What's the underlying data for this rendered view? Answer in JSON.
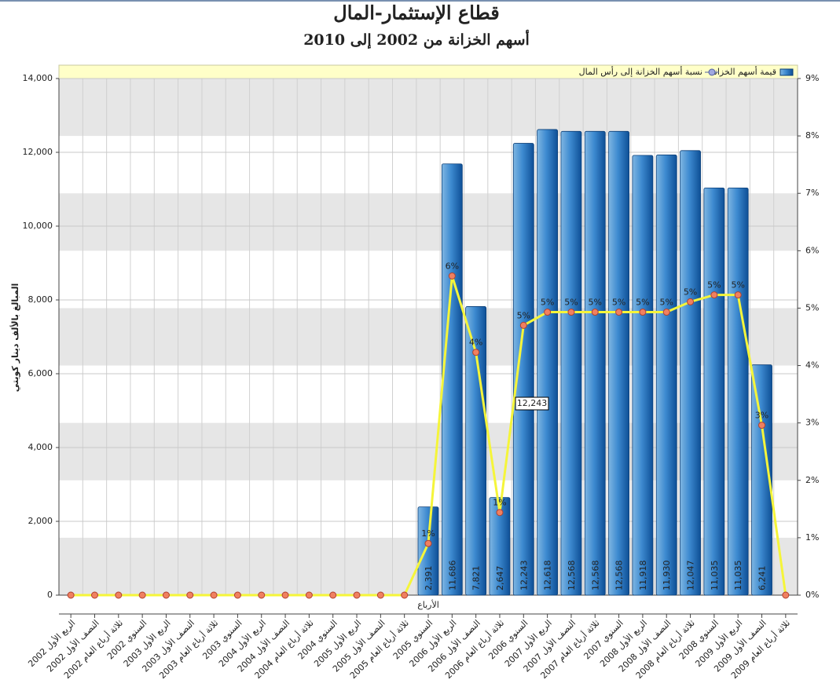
{
  "chart_data": {
    "type": "bar-line",
    "title": "قطاع الإستثمار-المال",
    "subtitle": "أسهم الخزانة من 2002 إلى 2010",
    "y_label": "المبالغ بالألف دينار كويتي",
    "x_label": "الأرباع",
    "tooltip": "12,243",
    "categories": [
      "الربع الأول 2002",
      "النصف الأول 2002",
      "ثلاثة أرباع العام 2002",
      "السنوي 2002",
      "الربع الأول 2003",
      "النصف الأول 2003",
      "ثلاثة أرباع العام 2003",
      "السنوي 2003",
      "الربع الأول 2004",
      "النصف الأول 2004",
      "ثلاثة أرباع العام 2004",
      "السنوي 2004",
      "الربع الأول 2005",
      "النصف الأول 2005",
      "ثلاثة أرباع العام 2005",
      "السنوي 2005",
      "الربع الأول 2006",
      "النصف الأول 2006",
      "ثلاثة أرباع العام 2006",
      "السنوي 2006",
      "الربع الأول 2007",
      "النصف الأول 2007",
      "ثلاثة أرباع العام 2007",
      "السنوي 2007",
      "الربع الأول 2008",
      "النصف الأول 2008",
      "ثلاثة أرباع العام 2008",
      "السنوي 2008",
      "الربع الأول 2009",
      "النصف الأول 2009",
      "ثلاثة أرباع العام 2009"
    ],
    "series": [
      {
        "name": "قيمة أسهم الخزانة",
        "type": "bar",
        "color": "#2f7fc4",
        "values": [
          0,
          0,
          0,
          0,
          0,
          0,
          0,
          0,
          0,
          0,
          0,
          0,
          0,
          0,
          0,
          2391,
          11686,
          7821,
          2647,
          12243,
          12618,
          12568,
          12568,
          12568,
          11918,
          11930,
          12047,
          11035,
          11035,
          6241,
          0
        ],
        "value_labels": [
          null,
          null,
          null,
          null,
          null,
          null,
          null,
          null,
          null,
          null,
          null,
          null,
          null,
          null,
          null,
          "2,391",
          "11,686",
          "7,821",
          "2,647",
          "12,243",
          "12,618",
          "12,568",
          "12,568",
          "12,568",
          "11,918",
          "11,930",
          "12,047",
          "11,035",
          "11,035",
          "6,241",
          null
        ]
      },
      {
        "name": "نسبة أسهم الخزانة إلى رأس المال",
        "type": "line",
        "axis": "y2",
        "color": "#f5f53a",
        "marker_color": "#f08060",
        "values": [
          0,
          0,
          0,
          0,
          0,
          0,
          0,
          0,
          0,
          0,
          0,
          0,
          0,
          0,
          0,
          0.9,
          5.56,
          4.23,
          1.44,
          4.7,
          4.93,
          4.93,
          4.93,
          4.93,
          4.93,
          4.93,
          5.11,
          5.23,
          5.23,
          2.96,
          0
        ],
        "value_labels": [
          null,
          null,
          null,
          null,
          null,
          null,
          null,
          null,
          null,
          null,
          null,
          null,
          null,
          null,
          null,
          "1%",
          "6%",
          "4%",
          "1%",
          "5%",
          "5%",
          "5%",
          "5%",
          "5%",
          "5%",
          "5%",
          "5%",
          "5%",
          "5%",
          "3%",
          null
        ]
      }
    ],
    "ylim": [
      0,
      14000
    ],
    "yticks": [
      0,
      {
        "value": 2000,
        "label": "2,000"
      },
      {
        "value": 4000,
        "label": "4,000"
      },
      {
        "value": 6000,
        "label": "6,000"
      },
      {
        "value": 8000,
        "label": "8,000"
      },
      {
        "value": 10000,
        "label": "10,000"
      },
      {
        "value": 12000,
        "label": "12,000"
      },
      {
        "value": 14000,
        "label": "14,000"
      }
    ],
    "y2lim": [
      0,
      9
    ],
    "y2ticks": [
      {
        "value": 0,
        "label": "0%"
      },
      {
        "value": 1,
        "label": "1%"
      },
      {
        "value": 2,
        "label": "2%"
      },
      {
        "value": 3,
        "label": "3%"
      },
      {
        "value": 4,
        "label": "4%"
      },
      {
        "value": 5,
        "label": "5%"
      },
      {
        "value": 6,
        "label": "6%"
      },
      {
        "value": 7,
        "label": "7%"
      },
      {
        "value": 8,
        "label": "8%"
      },
      {
        "value": 9,
        "label": "9%"
      }
    ],
    "grid": true,
    "legend": "top-right"
  }
}
